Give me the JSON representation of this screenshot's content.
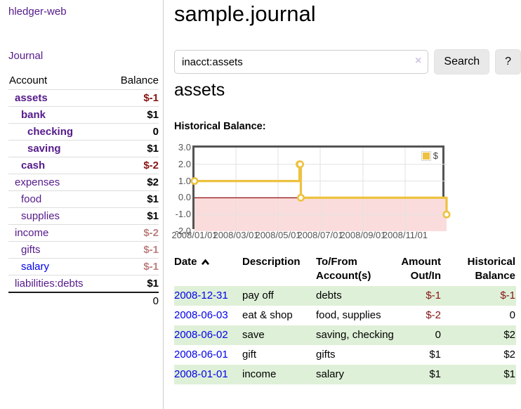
{
  "app": {
    "title": "hledger-web",
    "nav_journal": "Journal"
  },
  "sidebar": {
    "header": {
      "account": "Account",
      "balance": "Balance"
    },
    "accounts": [
      {
        "name": "assets",
        "depth": 0,
        "bold": true,
        "balance": "$-1",
        "balance_style": "neg"
      },
      {
        "name": "bank",
        "depth": 1,
        "bold": true,
        "balance": "$1",
        "balance_style": "pos"
      },
      {
        "name": "checking",
        "depth": 2,
        "bold": true,
        "balance": "0",
        "balance_style": "pos"
      },
      {
        "name": "saving",
        "depth": 2,
        "bold": true,
        "balance": "$1",
        "balance_style": "pos"
      },
      {
        "name": "cash",
        "depth": 1,
        "bold": true,
        "balance": "$-2",
        "balance_style": "neg"
      },
      {
        "name": "expenses",
        "depth": 0,
        "bold": false,
        "balance": "$2",
        "balance_style": "pos"
      },
      {
        "name": "food",
        "depth": 1,
        "bold": false,
        "balance": "$1",
        "balance_style": "pos"
      },
      {
        "name": "supplies",
        "depth": 1,
        "bold": false,
        "balance": "$1",
        "balance_style": "pos"
      },
      {
        "name": "income",
        "depth": 0,
        "bold": false,
        "balance": "$-2",
        "balance_style": "neg-muted"
      },
      {
        "name": "gifts",
        "depth": 1,
        "bold": false,
        "balance": "$-1",
        "balance_style": "neg-muted"
      },
      {
        "name": "salary",
        "depth": 1,
        "bold": false,
        "balance": "$-1",
        "balance_style": "neg-muted",
        "link_style": "blue"
      },
      {
        "name": "liabilities:debts",
        "depth": 0,
        "bold": false,
        "balance": "$1",
        "balance_style": "pos"
      }
    ],
    "total": "0"
  },
  "header": {
    "title": "sample.journal"
  },
  "search": {
    "value": "inacct:assets",
    "clear_icon": "×",
    "button": "Search",
    "help_button": "?"
  },
  "account_page": {
    "heading": "assets",
    "chart_label": "Historical Balance:"
  },
  "chart_data": {
    "type": "line",
    "step": true,
    "title": "Historical Balance",
    "series": [
      {
        "name": "$",
        "color": "#EDC240",
        "points": [
          {
            "date": "2008-01-01",
            "value": 1
          },
          {
            "date": "2008-06-01",
            "value": 2
          },
          {
            "date": "2008-06-02",
            "value": 2
          },
          {
            "date": "2008-06-03",
            "value": 0
          },
          {
            "date": "2008-12-31",
            "value": -1
          }
        ]
      }
    ],
    "x_range": [
      "2008-01-01",
      "2008-12-31"
    ],
    "y_range": [
      -2,
      3
    ],
    "x_ticks": [
      "2008/01/01",
      "2008/03/01",
      "2008/05/01",
      "2008/07/01",
      "2008/09/01",
      "2008/11/01"
    ],
    "y_ticks": [
      "3.0",
      "2.0",
      "1.0",
      "0.0",
      "-1.0",
      "-2.0"
    ],
    "legend": {
      "label": "$",
      "position": "top-right"
    },
    "grid": true,
    "negative_region_color": "#fbdcdc",
    "zero_line_color": "#971c1c"
  },
  "register": {
    "columns": [
      {
        "label": "Date",
        "sorted": "asc"
      },
      {
        "label": "Description"
      },
      {
        "label": "To/From Account(s)"
      },
      {
        "label": "Amount Out/In",
        "align": "right"
      },
      {
        "label": "Historical Balance",
        "align": "right"
      }
    ],
    "rows": [
      {
        "date": "2008-12-31",
        "description": "pay off",
        "accounts": "debts",
        "amount": "$-1",
        "amount_negative": true,
        "balance": "$-1",
        "balance_negative": true,
        "highlighted": true
      },
      {
        "date": "2008-06-03",
        "description": "eat & shop",
        "accounts": "food, supplies",
        "amount": "$-2",
        "amount_negative": true,
        "balance": "0",
        "balance_negative": false,
        "highlighted": false
      },
      {
        "date": "2008-06-02",
        "description": "save",
        "accounts": "saving, checking",
        "amount": "0",
        "amount_negative": false,
        "balance": "$2",
        "balance_negative": false,
        "highlighted": true
      },
      {
        "date": "2008-06-01",
        "description": "gift",
        "accounts": "gifts",
        "amount": "$1",
        "amount_negative": false,
        "balance": "$2",
        "balance_negative": false,
        "highlighted": false
      },
      {
        "date": "2008-01-01",
        "description": "income",
        "accounts": "salary",
        "amount": "$1",
        "amount_negative": false,
        "balance": "$1",
        "balance_negative": false,
        "highlighted": true
      }
    ]
  }
}
